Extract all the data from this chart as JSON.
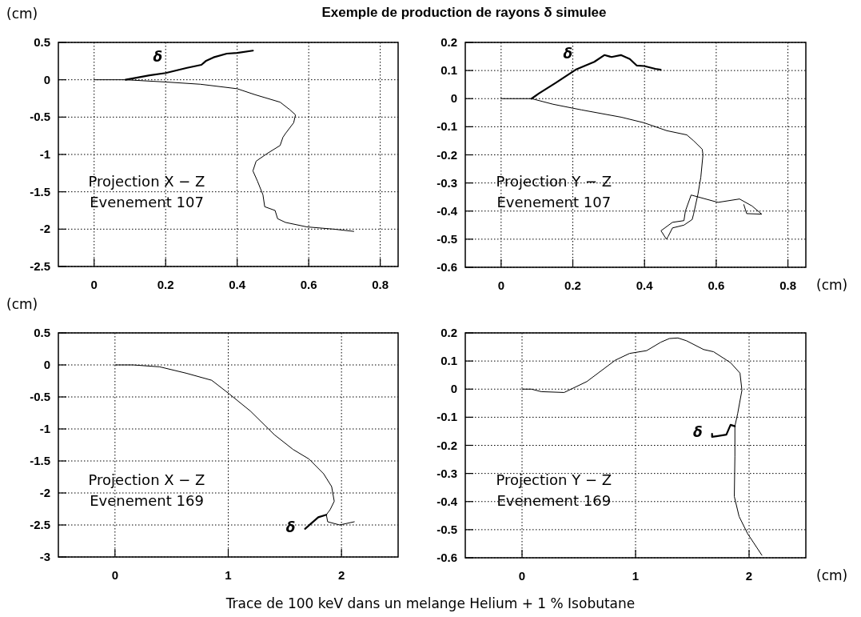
{
  "chart_data": [
    {
      "type": "line",
      "title": "Exemple de production de rayons δ simulee",
      "ylabel": "(cm)",
      "xlim": [
        -0.1,
        0.85
      ],
      "ylim": [
        -2.5,
        0.5
      ],
      "xticks": [
        0,
        0.2,
        0.4,
        0.6,
        0.8
      ],
      "yticks": [
        -2.5,
        -2,
        -1.5,
        -1,
        -0.5,
        0,
        0.5
      ],
      "grid": true,
      "annotations": [
        "Projection X − Z",
        "Evenement 107"
      ],
      "series": [
        {
          "color": "#000000",
          "x": [
            0,
            0.088,
            0.2,
            0.297,
            0.4,
            0.45,
            0.52,
            0.547,
            0.563,
            0.558,
            0.535,
            0.528,
            0.52,
            0.483,
            0.453,
            0.444,
            0.457,
            0.472,
            0.477,
            0.506,
            0.513,
            0.535,
            0.595,
            0.67,
            0.726
          ],
          "values": [
            0,
            0,
            -0.03,
            -0.06,
            -0.12,
            -0.2,
            -0.3,
            -0.4,
            -0.47,
            -0.575,
            -0.72,
            -0.77,
            -0.88,
            -0.99,
            -1.09,
            -1.22,
            -1.36,
            -1.54,
            -1.7,
            -1.75,
            -1.86,
            -1.91,
            -1.97,
            -2,
            -2.03
          ]
        },
        {
          "name": "δ",
          "color": "#000000",
          "x": [
            0.088,
            0.155,
            0.2,
            0.26,
            0.3,
            0.312,
            0.334,
            0.371,
            0.4,
            0.444
          ],
          "values": [
            0,
            0.06,
            0.09,
            0.16,
            0.2,
            0.25,
            0.3,
            0.35,
            0.36,
            0.39
          ]
        }
      ]
    },
    {
      "type": "line",
      "xlabel": "(cm)",
      "xlim": [
        -0.1,
        0.85
      ],
      "ylim": [
        -0.6,
        0.2
      ],
      "xticks": [
        0,
        0.2,
        0.4,
        0.6,
        0.8
      ],
      "yticks": [
        -0.6,
        -0.5,
        -0.4,
        -0.3,
        -0.2,
        -0.1,
        0,
        0.1,
        0.2
      ],
      "grid": true,
      "annotations": [
        "Projection Y − Z",
        "Evenement 107"
      ],
      "series": [
        {
          "color": "#000000",
          "x": [
            0,
            0.085,
            0.145,
            0.224,
            0.335,
            0.399,
            0.462,
            0.518,
            0.537,
            0.561,
            0.563,
            0.557,
            0.549,
            0.537,
            0.533,
            0.51,
            0.478,
            0.466,
            0.461,
            0.446,
            0.478,
            0.51,
            0.514,
            0.53,
            0.605,
            0.665,
            0.7,
            0.727,
            0.685,
            0.677
          ],
          "values": [
            0,
            0,
            -0.02,
            -0.04,
            -0.066,
            -0.086,
            -0.114,
            -0.129,
            -0.15,
            -0.18,
            -0.2,
            -0.28,
            -0.34,
            -0.41,
            -0.43,
            -0.45,
            -0.46,
            -0.49,
            -0.5,
            -0.47,
            -0.44,
            -0.434,
            -0.4,
            -0.343,
            -0.369,
            -0.357,
            -0.382,
            -0.411,
            -0.409,
            -0.377
          ]
        },
        {
          "name": "δ",
          "color": "#000000",
          "x": [
            0.085,
            0.105,
            0.152,
            0.208,
            0.26,
            0.288,
            0.308,
            0.334,
            0.359,
            0.378,
            0.399,
            0.43,
            0.445
          ],
          "values": [
            0,
            0.018,
            0.056,
            0.103,
            0.131,
            0.155,
            0.148,
            0.155,
            0.141,
            0.118,
            0.116,
            0.106,
            0.103
          ]
        }
      ]
    },
    {
      "type": "line",
      "ylabel": "(cm)",
      "xlim": [
        -0.5,
        2.5
      ],
      "ylim": [
        -3,
        0.5
      ],
      "xticks": [
        0,
        1,
        2
      ],
      "yticks": [
        -3,
        -2.5,
        -2,
        -1.5,
        -1,
        -0.5,
        0,
        0.5
      ],
      "grid": true,
      "annotations": [
        "Projection X − Z",
        "Evenement 169"
      ],
      "series": [
        {
          "color": "#000000",
          "x": [
            0,
            0.16,
            0.395,
            0.63,
            0.854,
            1.007,
            1.195,
            1.407,
            1.572,
            1.713,
            1.842,
            1.913,
            1.936,
            1.9,
            1.866,
            1.878,
            1.984,
            2.113
          ],
          "values": [
            0,
            0,
            -0.03,
            -0.13,
            -0.24,
            -0.45,
            -0.72,
            -1.09,
            -1.32,
            -1.47,
            -1.7,
            -1.9,
            -2.13,
            -2.26,
            -2.34,
            -2.45,
            -2.5,
            -2.45
          ]
        },
        {
          "name": "δ",
          "color": "#000000",
          "x": [
            1.866,
            1.795,
            1.736,
            1.678
          ],
          "values": [
            -2.34,
            -2.38,
            -2.47,
            -2.56
          ]
        }
      ]
    },
    {
      "type": "line",
      "xlabel": "(cm)",
      "xlim": [
        -0.5,
        2.5
      ],
      "ylim": [
        -0.6,
        0.2
      ],
      "xticks": [
        0,
        1,
        2
      ],
      "yticks": [
        -0.6,
        -0.5,
        -0.4,
        -0.3,
        -0.2,
        -0.1,
        0,
        0.1,
        0.2
      ],
      "grid": true,
      "annotations": [
        "Projection Y − Z",
        "Evenement 169",
        "Trace de 100 keV dans un melange Helium + 1 % Isobutane"
      ],
      "series": [
        {
          "color": "#000000",
          "x": [
            0,
            0.083,
            0.17,
            0.371,
            0.571,
            0.822,
            0.947,
            1.098,
            1.223,
            1.298,
            1.373,
            1.449,
            1.599,
            1.687,
            1.837,
            1.92,
            1.937,
            1.9,
            1.875,
            1.875,
            1.87,
            1.912,
            1.987,
            2.113
          ],
          "values": [
            0,
            0,
            -0.009,
            -0.012,
            0.027,
            0.103,
            0.127,
            0.137,
            0.167,
            0.18,
            0.182,
            0.172,
            0.141,
            0.133,
            0.094,
            0.057,
            -0.004,
            -0.086,
            -0.132,
            -0.239,
            -0.382,
            -0.453,
            -0.514,
            -0.591
          ]
        },
        {
          "name": "δ",
          "color": "#000000",
          "x": [
            1.875,
            1.837,
            1.8,
            1.724,
            1.674,
            1.674
          ],
          "values": [
            -0.132,
            -0.127,
            -0.162,
            -0.167,
            -0.17,
            -0.159
          ]
        }
      ]
    }
  ]
}
